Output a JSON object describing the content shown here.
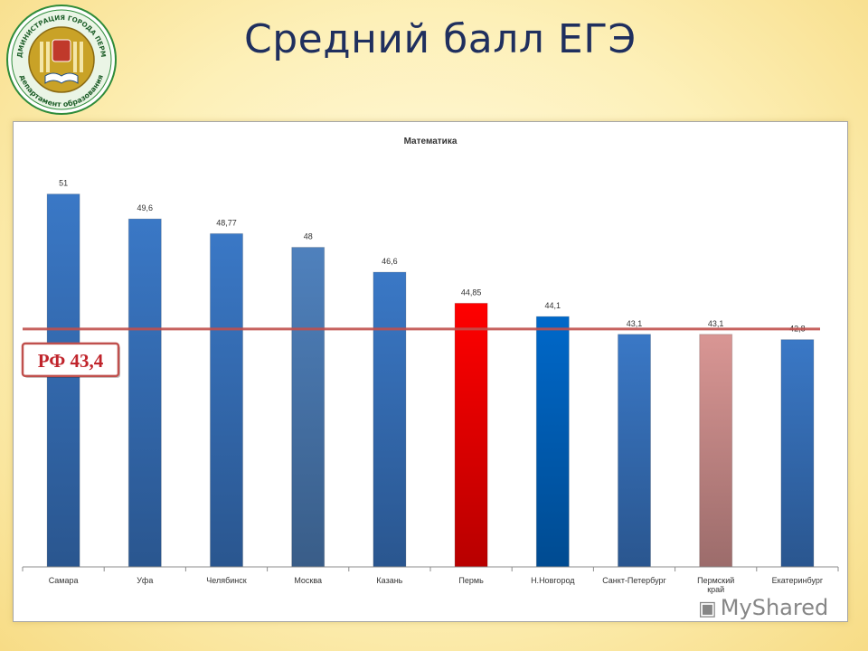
{
  "header": {
    "title": "Средний балл ЕГЭ",
    "logo_text_top": "АДМИНИСТРАЦИЯ ГОРОДА ПЕРМИ",
    "logo_text_bottom": "департамент образования"
  },
  "watermark": {
    "text": "MyShared"
  },
  "colors": {
    "bar_default": "#3a78c6",
    "bar_moskva": "#4f81bd",
    "bar_perm": "#ff0000",
    "bar_nnovgorod": "#0068c9",
    "bar_permkrai": "#d99694",
    "reference_line": "#c0504d"
  },
  "chart_data": {
    "type": "bar",
    "title": "Математика",
    "categories": [
      "Самара",
      "Уфа",
      "Челябинск",
      "Москва",
      "Казань",
      "Пермь",
      "Н.Новгород",
      "Санкт-Петербург",
      "Пермский край",
      "Екатеринбург"
    ],
    "values": [
      51,
      49.6,
      48.77,
      48,
      46.6,
      44.85,
      44.1,
      43.1,
      43.1,
      42.8
    ],
    "value_labels": [
      "51",
      "49,6",
      "48,77",
      "48",
      "46,6",
      "44,85",
      "44,1",
      "43,1",
      "43,1",
      "42,8"
    ],
    "bar_colors": [
      "#3a78c6",
      "#3a78c6",
      "#3a78c6",
      "#4f81bd",
      "#3a78c6",
      "#ff0000",
      "#0068c9",
      "#3a78c6",
      "#d99694",
      "#3a78c6"
    ],
    "ylim": [
      30,
      52
    ],
    "reference": {
      "value": 43.4,
      "label": "РФ 43,4"
    },
    "grid": false,
    "legend": "none",
    "xlabel": "",
    "ylabel": ""
  }
}
